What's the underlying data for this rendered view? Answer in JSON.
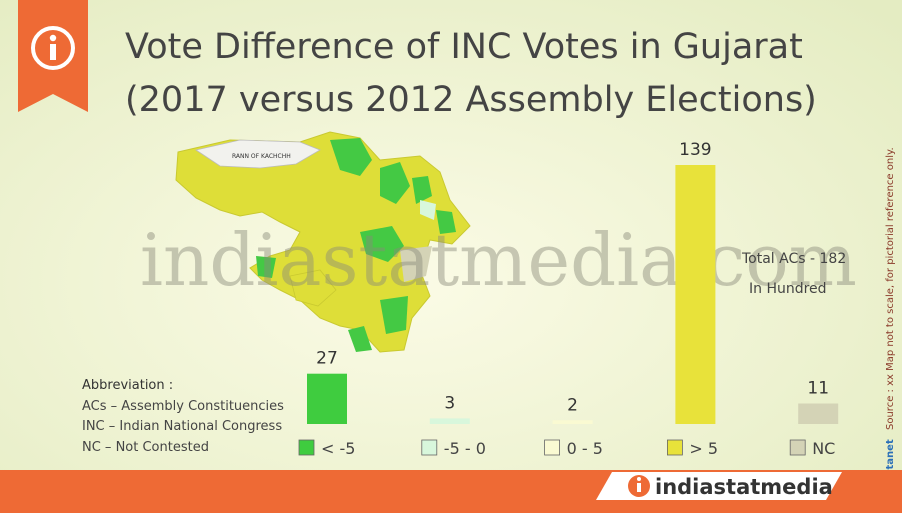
{
  "chart_data": {
    "type": "bar",
    "title": "Vote Difference of INC Votes in Gujarat",
    "subtitle": "(2017 versus 2012 Assembly Elections)",
    "categories": [
      "< -5",
      "-5 - 0",
      "0 - 5",
      "> 5",
      "NC"
    ],
    "values": [
      27,
      3,
      2,
      139,
      11
    ],
    "colors": [
      "#3fcc3f",
      "#d8f7dc",
      "#fafad2",
      "#e8e23a",
      "#d4d3b6"
    ],
    "annotations": [
      "Total ACs - 182",
      "In Hundred"
    ],
    "abbreviations": {
      "heading": "Abbreviation :",
      "items": [
        "ACs – Assembly Constituencies",
        "INC – Indian National Congress",
        "NC – Not Contested"
      ]
    }
  },
  "map": {
    "label": "RANN OF KACHCHH"
  },
  "watermark": "indiastatmedia.com",
  "side_note": "Source : xx Map not to scale, for pictorial reference only.",
  "credit": "© Datanet",
  "footer": {
    "brand": "indiastatmedia"
  }
}
